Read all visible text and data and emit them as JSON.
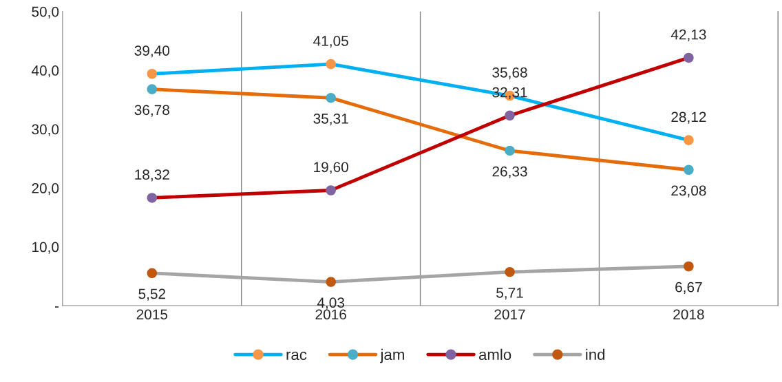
{
  "chart_data": {
    "type": "line",
    "categories": [
      "2015",
      "2016",
      "2017",
      "2018"
    ],
    "series": [
      {
        "name": "rac",
        "color": "#00b0f0",
        "colors": [
          "#f79646",
          "#f79646",
          "#f79646",
          "#f79646"
        ],
        "values": [
          39.4,
          41.05,
          35.68,
          28.12
        ],
        "value_labels": [
          "39,40",
          "41,05",
          "35,68",
          "28,12"
        ]
      },
      {
        "name": "jam",
        "color": "#e46c0a",
        "colors": [
          "#4bacc6",
          "#4bacc6",
          "#4bacc6",
          "#4bacc6"
        ],
        "values": [
          36.78,
          35.31,
          26.33,
          23.08
        ],
        "value_labels": [
          "36,78",
          "35,31",
          "26,33",
          "23,08"
        ]
      },
      {
        "name": "amlo",
        "color": "#c00000",
        "colors": [
          "#8064a2",
          "#8064a2",
          "#8064a2",
          "#8064a2"
        ],
        "values": [
          18.32,
          19.6,
          32.31,
          42.13
        ],
        "value_labels": [
          "18,32",
          "19,60",
          "32,31",
          "42,13"
        ]
      },
      {
        "name": "ind",
        "color": "#a5a5a5",
        "colors": [
          "#c0580f",
          "#c0580f",
          "#c0580f",
          "#c0580f"
        ],
        "values": [
          5.52,
          4.03,
          5.71,
          6.67
        ],
        "value_labels": [
          "5,52",
          "4,03",
          "5,71",
          "6,67"
        ]
      }
    ],
    "ylim": [
      0,
      50
    ],
    "yticks": [
      {
        "value": 0,
        "label": "-"
      },
      {
        "value": 10,
        "label": "10,0"
      },
      {
        "value": 20,
        "label": "20,0"
      },
      {
        "value": 30,
        "label": "30,0"
      },
      {
        "value": 40,
        "label": "40,0"
      },
      {
        "value": 50,
        "label": "50,0"
      }
    ],
    "grid": "x",
    "legend": "bottom",
    "marker": "circle",
    "line_style": "solid"
  }
}
